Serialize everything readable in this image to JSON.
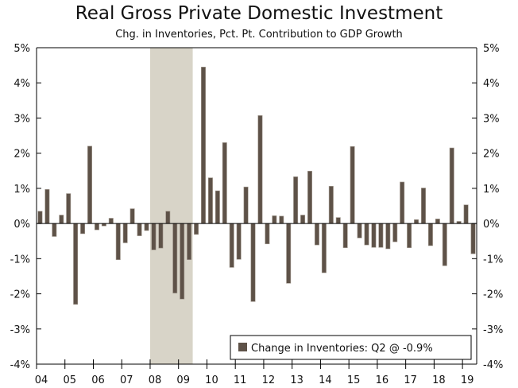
{
  "chart_data": {
    "type": "bar",
    "title": "Real Gross Private Domestic Investment",
    "subtitle": "Chg. in Inventories, Pct. Pt. Contribution to GDP Growth",
    "xlabel": "",
    "ylabel": "",
    "ylim": [
      -4,
      5
    ],
    "yticks": [
      "-4%",
      "-3%",
      "-2%",
      "-1%",
      "0%",
      "1%",
      "2%",
      "3%",
      "4%",
      "5%"
    ],
    "yticks_values": [
      -4,
      -3,
      -2,
      -1,
      0,
      1,
      2,
      3,
      4,
      5
    ],
    "xticks": [
      "04",
      "05",
      "06",
      "07",
      "08",
      "09",
      "10",
      "11",
      "12",
      "13",
      "14",
      "15",
      "16",
      "17",
      "18",
      "19"
    ],
    "start_year": 2004,
    "recession": {
      "start": 2008.0,
      "end": 2009.5
    },
    "series": [
      {
        "name": "Change in Inventories",
        "color": "#5e5248",
        "values": [
          0.35,
          0.97,
          -0.37,
          0.24,
          0.85,
          -2.3,
          -0.29,
          2.2,
          -0.18,
          -0.07,
          0.15,
          -1.03,
          -0.55,
          0.42,
          -0.35,
          -0.2,
          -0.75,
          -0.7,
          0.35,
          -1.98,
          -2.15,
          -1.03,
          -0.31,
          4.45,
          1.3,
          0.93,
          2.3,
          -1.25,
          -1.02,
          1.04,
          -2.22,
          3.07,
          -0.58,
          0.22,
          0.21,
          -1.7,
          1.33,
          0.24,
          1.49,
          -0.61,
          -1.4,
          1.06,
          0.17,
          -0.69,
          2.19,
          -0.41,
          -0.61,
          -0.68,
          -0.68,
          -0.72,
          -0.52,
          1.18,
          -0.69,
          0.11,
          1.01,
          -0.63,
          0.13,
          -1.2,
          2.15,
          0.06,
          0.53,
          -0.86
        ]
      }
    ],
    "legend": {
      "label": "Change in Inventories: Q2 @ -0.9%",
      "position": "bottom-right"
    },
    "recession_color": "#d8d4c8"
  }
}
